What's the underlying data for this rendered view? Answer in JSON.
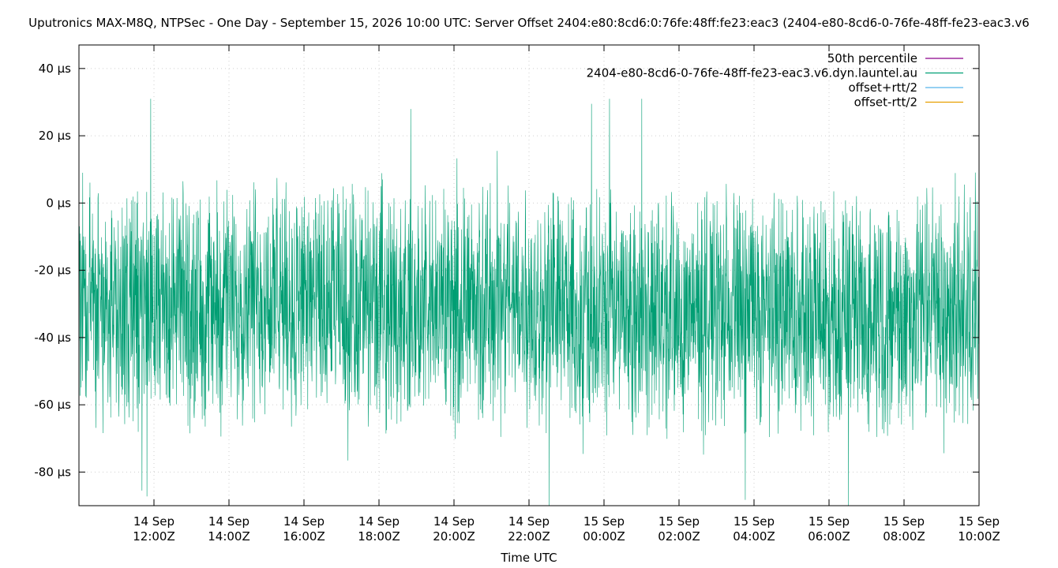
{
  "chart_data": {
    "type": "line",
    "title": "Uputronics MAX-M8Q, NTPSec - One Day - September 15, 2026 10:00 UTC: Server Offset 2404:e80:8cd6:0:76fe:48ff:fe23:eac3 (2404-e80-8cd6-0-76fe-48ff-fe23-eac3.v6",
    "xlabel": "Time UTC",
    "ylabel": "",
    "ylim": [
      -90,
      47
    ],
    "xlim_hours": [
      -24.0,
      0.0
    ],
    "grid": true,
    "legend_position": "top-right",
    "y_ticks": [
      {
        "value": 40,
        "label": "40 µs"
      },
      {
        "value": 20,
        "label": "20 µs"
      },
      {
        "value": 0,
        "label": "0 µs"
      },
      {
        "value": -20,
        "label": "-20 µs"
      },
      {
        "value": -40,
        "label": "-40 µs"
      },
      {
        "value": -60,
        "label": "-60 µs"
      },
      {
        "value": -80,
        "label": "-80 µs"
      }
    ],
    "x_ticks": [
      {
        "hour": -22,
        "line1": "14 Sep",
        "line2": "12:00Z"
      },
      {
        "hour": -20,
        "line1": "14 Sep",
        "line2": "14:00Z"
      },
      {
        "hour": -18,
        "line1": "14 Sep",
        "line2": "16:00Z"
      },
      {
        "hour": -16,
        "line1": "14 Sep",
        "line2": "18:00Z"
      },
      {
        "hour": -14,
        "line1": "14 Sep",
        "line2": "20:00Z"
      },
      {
        "hour": -12,
        "line1": "14 Sep",
        "line2": "22:00Z"
      },
      {
        "hour": -10,
        "line1": "15 Sep",
        "line2": "00:00Z"
      },
      {
        "hour": -8,
        "line1": "15 Sep",
        "line2": "02:00Z"
      },
      {
        "hour": -6,
        "line1": "15 Sep",
        "line2": "04:00Z"
      },
      {
        "hour": -4,
        "line1": "15 Sep",
        "line2": "06:00Z"
      },
      {
        "hour": -2,
        "line1": "15 Sep",
        "line2": "08:00Z"
      },
      {
        "hour": 0,
        "line1": "15 Sep",
        "line2": "10:00Z"
      }
    ],
    "series": [
      {
        "name": "50th percentile",
        "color": "#8b008b",
        "values": []
      },
      {
        "name": "2404-e80-8cd6-0-76fe-48ff-fe23-eac3.v6.dyn.launtel.au",
        "color": "#009e73",
        "summary": {
          "typical_range": [
            -75,
            5
          ],
          "center": -31,
          "min": -90,
          "max": 31
        },
        "x_hours": [
          -24.0,
          -23.0,
          -22.0,
          -21.0,
          -20.0,
          -19.0,
          -18.0,
          -17.0,
          -16.0,
          -15.0,
          -14.0,
          -13.0,
          -12.0,
          -11.0,
          -10.0,
          -9.0,
          -8.0,
          -7.0,
          -6.0,
          -5.0,
          -4.0,
          -3.0,
          -2.0,
          -1.0,
          0.0
        ],
        "values": [
          -30,
          -32,
          -29,
          -31,
          -30,
          -28,
          -31,
          -30,
          -29,
          -32,
          -31,
          -30,
          -31,
          -32,
          -33,
          -31,
          -32,
          -30,
          -31,
          -32,
          -31,
          -33,
          -32,
          -31,
          -30
        ]
      },
      {
        "name": "offset+rtt/2",
        "color": "#56b4e9",
        "values": []
      },
      {
        "name": "offset-rtt/2",
        "color": "#e69f00",
        "values": []
      }
    ]
  }
}
